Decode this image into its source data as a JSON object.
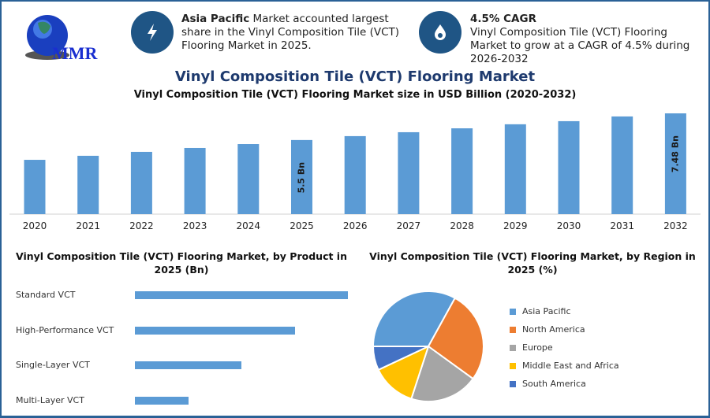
{
  "header": {
    "logo_text": "MMR",
    "info1": {
      "icon": "lightning-icon",
      "bold": "Asia Pacific",
      "text": " Market accounted largest share in the Vinyl Composition Tile (VCT) Flooring Market in 2025."
    },
    "info2": {
      "icon": "flame-drop-icon",
      "bold": "4.5% CAGR",
      "text": "Vinyl Composition Tile (VCT) Flooring Market to grow at a CAGR of 4.5% during 2026-2032"
    }
  },
  "chart_data": [
    {
      "type": "bar",
      "title": "Vinyl Composition Tile (VCT) Flooring Market",
      "subtitle": "Vinyl Composition Tile (VCT) Flooring Market size in USD Billion (2020-2032)",
      "categories": [
        "2020",
        "2021",
        "2022",
        "2023",
        "2024",
        "2025",
        "2026",
        "2027",
        "2028",
        "2029",
        "2030",
        "2031",
        "2032"
      ],
      "values": [
        4.03,
        4.33,
        4.62,
        4.91,
        5.2,
        5.5,
        5.79,
        6.08,
        6.37,
        6.67,
        6.9,
        7.25,
        7.48
      ],
      "data_labels": {
        "5": "5.5 Bn",
        "12": "7.48 Bn"
      },
      "ylim": [
        0,
        7.6
      ],
      "color": "#5b9bd5"
    },
    {
      "type": "bar",
      "orientation": "horizontal",
      "title": "Vinyl Composition Tile (VCT) Flooring Market, by Product in 2025 (Bn)",
      "categories": [
        "Standard VCT",
        "High-Performance VCT",
        "Single-Layer VCT",
        "Multi-Layer VCT"
      ],
      "values": [
        2.2,
        1.65,
        1.1,
        0.55
      ],
      "xlim": [
        0,
        2.2
      ],
      "color": "#5b9bd5"
    },
    {
      "type": "pie",
      "title": "Vinyl Composition Tile (VCT) Flooring Market, by Region in 2025 (%)",
      "labels": [
        "Asia Pacific",
        "North America",
        "Europe",
        "Middle East and Africa",
        "South America"
      ],
      "values": [
        33,
        27,
        20,
        13,
        7
      ],
      "colors": [
        "#5b9bd5",
        "#ed7d31",
        "#a5a5a5",
        "#ffc000",
        "#4472c4"
      ]
    }
  ]
}
